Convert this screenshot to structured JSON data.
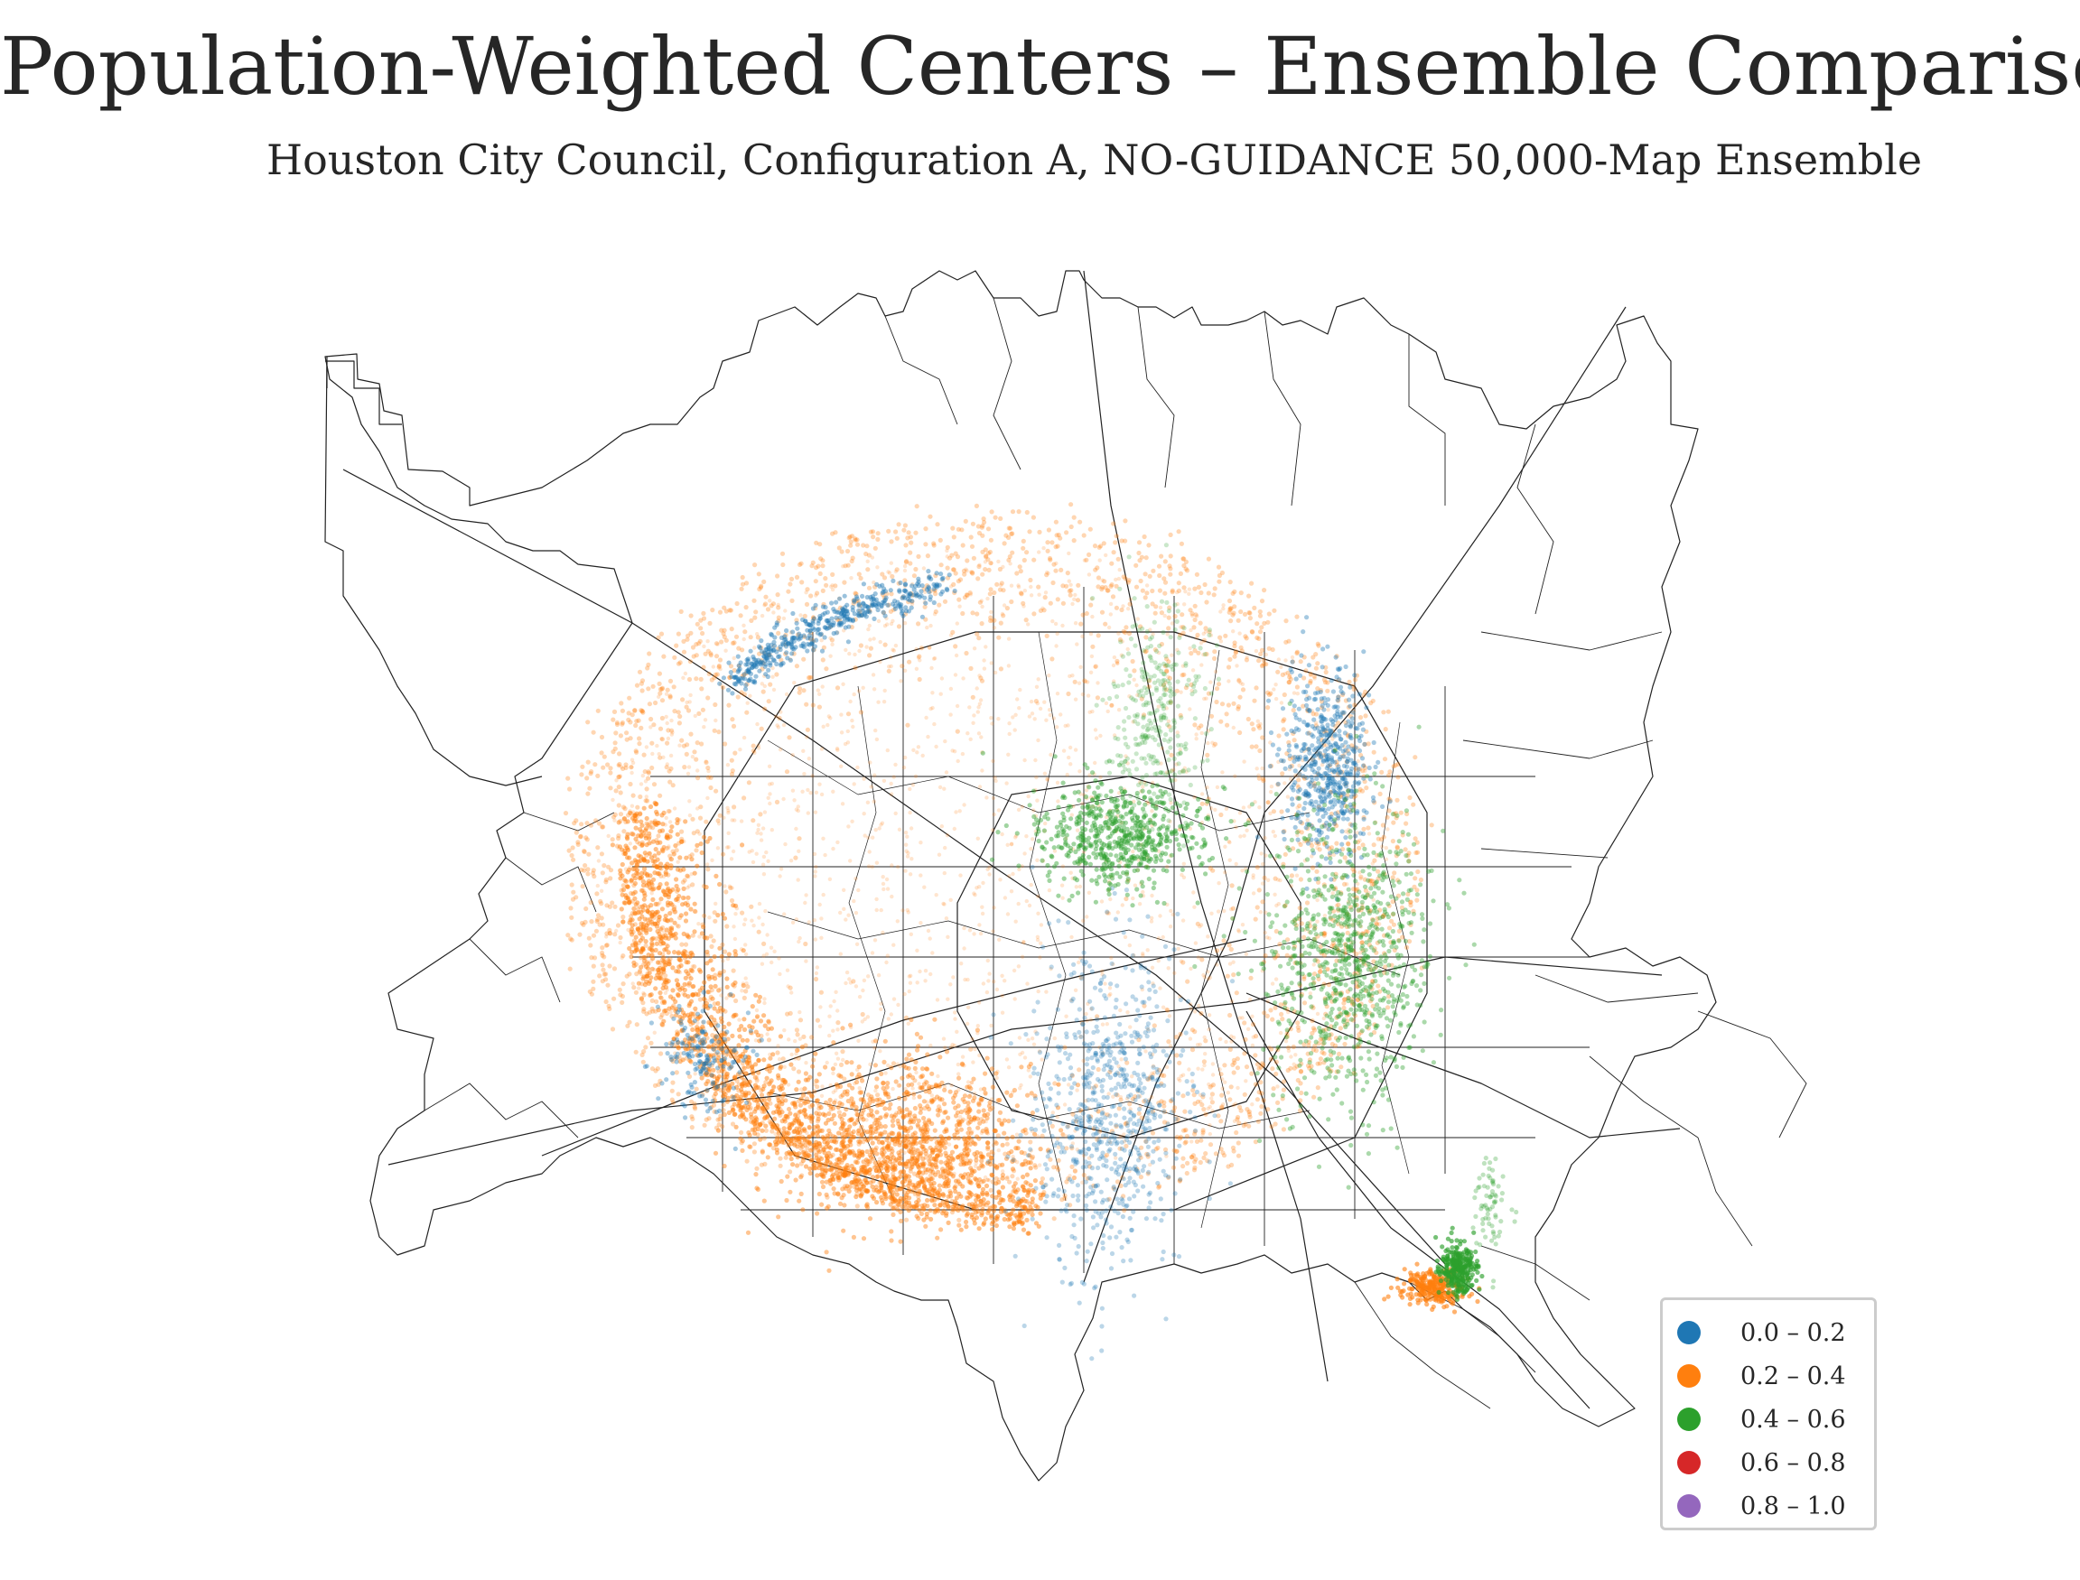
{
  "title": "Population-Weighted Centers – Ensemble Comparison",
  "subtitle": "Houston City Council, Configuration A, NO-GUIDANCE 50,000-Map Ensemble",
  "legend": {
    "items": [
      {
        "label": "0.0 – 0.2",
        "color": "#1f77b4"
      },
      {
        "label": "0.2 – 0.4",
        "color": "#ff7f0e"
      },
      {
        "label": "0.4 – 0.6",
        "color": "#2ca02c"
      },
      {
        "label": "0.6 – 0.8",
        "color": "#d62728"
      },
      {
        "label": "0.8 – 1.0",
        "color": "#9467bd"
      }
    ]
  },
  "map": {
    "axes_visible": false,
    "boundary_color": "#222222",
    "point_opacity": "low",
    "clusters": [
      {
        "bin": "0.2 – 0.4",
        "color": "#ff7f0e",
        "shape": "large ring around city center"
      },
      {
        "bin": "0.2 – 0.4",
        "color": "#ff7f0e",
        "shape": "dense southwest arc"
      },
      {
        "bin": "0.0 – 0.2",
        "color": "#1f77b4",
        "shape": "north arc"
      },
      {
        "bin": "0.0 – 0.2",
        "color": "#1f77b4",
        "shape": "northeast streak"
      },
      {
        "bin": "0.0 – 0.2",
        "color": "#1f77b4",
        "shape": "south-central band"
      },
      {
        "bin": "0.4 – 0.6",
        "color": "#2ca02c",
        "shape": "north-central blob"
      },
      {
        "bin": "0.4 – 0.6",
        "color": "#2ca02c",
        "shape": "east-central blob"
      },
      {
        "bin": "0.4 – 0.6",
        "color": "#2ca02c",
        "shape": "southeast cluster"
      }
    ]
  }
}
